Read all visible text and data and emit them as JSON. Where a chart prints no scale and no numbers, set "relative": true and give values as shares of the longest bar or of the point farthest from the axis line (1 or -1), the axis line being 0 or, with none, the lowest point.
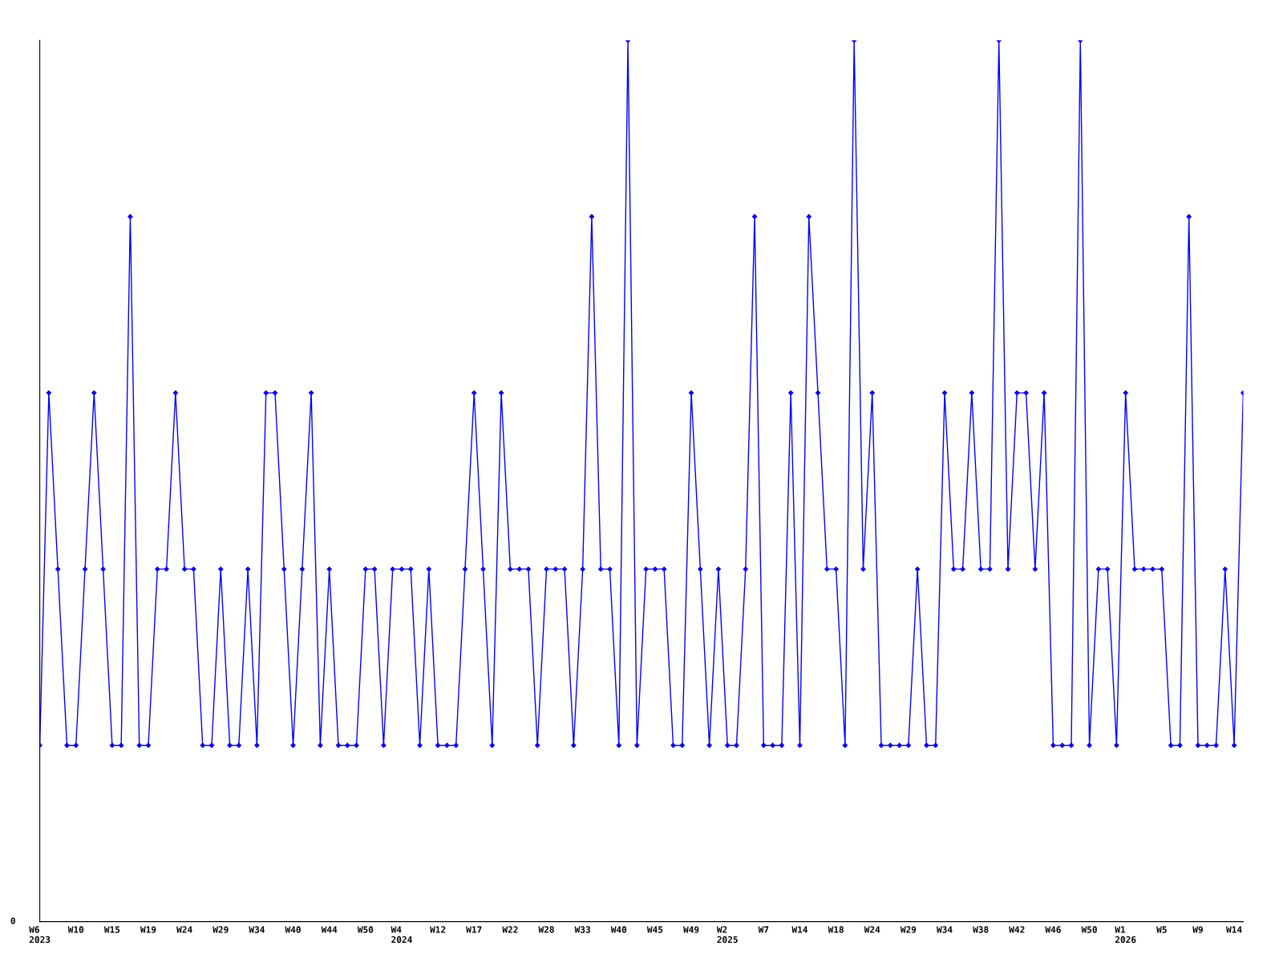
{
  "chart_data": {
    "type": "line",
    "relative": true,
    "color": "#0000ff",
    "marker": "diamond",
    "line_style": "solid",
    "grid": false,
    "legend": false,
    "annotations": [
      "0"
    ],
    "categories": [
      "W6\n2023",
      null,
      null,
      null,
      "W10",
      null,
      null,
      null,
      "W15",
      null,
      null,
      null,
      "W19",
      null,
      null,
      null,
      "W24",
      null,
      null,
      null,
      "W29",
      null,
      null,
      null,
      "W34",
      null,
      null,
      null,
      "W40",
      null,
      null,
      null,
      "W44",
      null,
      null,
      null,
      "W50",
      null,
      null,
      null,
      "W4\n2024",
      null,
      null,
      null,
      "W12",
      null,
      null,
      null,
      "W17",
      null,
      null,
      null,
      "W22",
      null,
      null,
      null,
      "W28",
      null,
      null,
      null,
      "W33",
      null,
      null,
      null,
      "W40",
      null,
      null,
      null,
      "W45",
      null,
      null,
      null,
      "W49",
      null,
      null,
      null,
      "W2\n2025",
      null,
      null,
      null,
      "W7",
      null,
      null,
      null,
      "W14",
      null,
      null,
      null,
      "W18",
      null,
      null,
      null,
      "W24",
      null,
      null,
      null,
      "W29",
      null,
      null,
      null,
      "W34",
      null,
      null,
      null,
      "W38",
      null,
      null,
      null,
      "W42",
      null,
      null,
      null,
      "W46",
      null,
      null,
      null,
      "W50",
      null,
      null,
      null,
      "W1\n2026",
      null,
      null,
      null,
      "W5",
      null,
      null,
      null,
      "W9",
      null,
      null,
      null,
      "W14",
      null
    ],
    "values": [
      0.2,
      0.6,
      0.4,
      0.2,
      0.2,
      0.4,
      0.6,
      0.4,
      0.2,
      0.2,
      0.8,
      0.2,
      0.2,
      0.4,
      0.4,
      0.6,
      0.4,
      0.4,
      0.2,
      0.2,
      0.4,
      0.2,
      0.2,
      0.4,
      0.2,
      0.6,
      0.6,
      0.4,
      0.2,
      0.4,
      0.6,
      0.2,
      0.4,
      0.2,
      0.2,
      0.2,
      0.4,
      0.4,
      0.2,
      0.4,
      0.4,
      0.4,
      0.2,
      0.4,
      0.2,
      0.2,
      0.2,
      0.4,
      0.6,
      0.4,
      0.2,
      0.6,
      0.4,
      0.4,
      0.4,
      0.2,
      0.4,
      0.4,
      0.4,
      0.2,
      0.4,
      0.8,
      0.4,
      0.4,
      0.2,
      1,
      0.2,
      0.4,
      0.4,
      0.4,
      0.2,
      0.2,
      0.6,
      0.4,
      0.2,
      0.4,
      0.2,
      0.2,
      0.4,
      0.8,
      0.2,
      0.2,
      0.2,
      0.6,
      0.2,
      0.8,
      0.6,
      0.4,
      0.4,
      0.2,
      1,
      0.4,
      0.6,
      0.2,
      0.2,
      0.2,
      0.2,
      0.4,
      0.2,
      0.2,
      0.6,
      0.4,
      0.4,
      0.6,
      0.4,
      0.4,
      1,
      0.4,
      0.6,
      0.6,
      0.4,
      0.6,
      0.2,
      0.2,
      0.2,
      1,
      0.2,
      0.4,
      0.4,
      0.2,
      0.6,
      0.4,
      0.4,
      0.4,
      0.4,
      0.2,
      0.2,
      0.8,
      0.2,
      0.2,
      0.2,
      0.4,
      0.2,
      0.6
    ]
  }
}
